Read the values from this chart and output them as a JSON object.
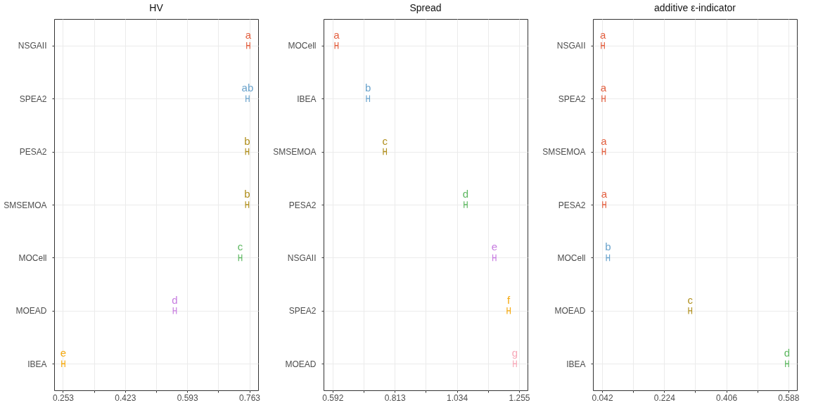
{
  "chart_data": [
    {
      "type": "scatter",
      "orientation": "horizontal",
      "title": "HV",
      "categories": [
        "NSGAII",
        "SPEA2",
        "PESA2",
        "SMSEMOA",
        "MOCell",
        "MOEAD",
        "IBEA"
      ],
      "values": [
        0.76,
        0.758,
        0.757,
        0.757,
        0.738,
        0.559,
        0.254
      ],
      "colors": [
        "#e35f3f",
        "#6aa3cc",
        "#b08f1c",
        "#b08f1c",
        "#5db760",
        "#c77ce0",
        "#f5a80c"
      ],
      "value_labels": [
        "a",
        "ab",
        "b",
        "b",
        "c",
        "d",
        "e"
      ],
      "xlim": [
        0.229,
        0.787
      ],
      "xticks": [
        0.253,
        {
          "value": 0.338,
          "label": null
        },
        0.423,
        {
          "value": 0.508,
          "label": null
        },
        0.593,
        {
          "value": 0.678,
          "label": null
        },
        0.763
      ],
      "grid": true,
      "marker": "cross"
    },
    {
      "type": "scatter",
      "orientation": "horizontal",
      "title": "Spread",
      "categories": [
        "MOCell",
        "IBEA",
        "SMSEMOA",
        "PESA2",
        "NSGAII",
        "SPEA2",
        "MOEAD"
      ],
      "values": [
        0.606,
        0.718,
        0.778,
        1.065,
        1.167,
        1.218,
        1.24
      ],
      "colors": [
        "#e35f3f",
        "#6aa3cc",
        "#b08f1c",
        "#5db760",
        "#c77ce0",
        "#f5a80c",
        "#f7a8b8"
      ],
      "value_labels": [
        "a",
        "b",
        "c",
        "d",
        "e",
        "f",
        "g"
      ],
      "xlim": [
        0.56,
        1.285
      ],
      "xticks": [
        0.592,
        {
          "value": 0.7025,
          "label": null
        },
        0.813,
        {
          "value": 0.9235,
          "label": null
        },
        1.034,
        {
          "value": 1.1445,
          "label": null
        },
        1.255
      ],
      "grid": true,
      "marker": "cross"
    },
    {
      "type": "scatter",
      "orientation": "horizontal",
      "title": "additive ε-indicator",
      "categories": [
        "NSGAII",
        "SPEA2",
        "SMSEMOA",
        "PESA2",
        "MOCell",
        "MOEAD",
        "IBEA"
      ],
      "values": [
        0.044,
        0.046,
        0.047,
        0.048,
        0.059,
        0.3,
        0.584
      ],
      "colors": [
        "#e35f3f",
        "#e35f3f",
        "#e35f3f",
        "#e35f3f",
        "#6aa3cc",
        "#b08f1c",
        "#5db760"
      ],
      "value_labels": [
        "a",
        "a",
        "a",
        "a",
        "b",
        "c",
        "d"
      ],
      "xlim": [
        0.015,
        0.613
      ],
      "xticks": [
        0.042,
        {
          "value": 0.133,
          "label": null
        },
        0.224,
        {
          "value": 0.315,
          "label": null
        },
        0.406,
        {
          "value": 0.497,
          "label": null
        },
        0.588
      ],
      "grid": true,
      "marker": "cross"
    }
  ]
}
